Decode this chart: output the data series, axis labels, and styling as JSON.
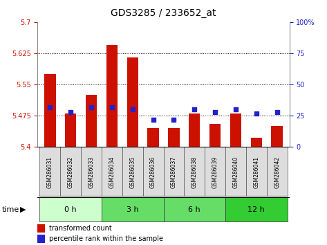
{
  "title": "GDS3285 / 233652_at",
  "samples": [
    "GSM286031",
    "GSM286032",
    "GSM286033",
    "GSM286034",
    "GSM286035",
    "GSM286036",
    "GSM286037",
    "GSM286038",
    "GSM286039",
    "GSM286040",
    "GSM286041",
    "GSM286042"
  ],
  "bar_values": [
    5.575,
    5.48,
    5.525,
    5.645,
    5.615,
    5.445,
    5.445,
    5.48,
    5.455,
    5.48,
    5.422,
    5.45
  ],
  "percentile_values": [
    32,
    28,
    32,
    32,
    30,
    22,
    22,
    30,
    28,
    30,
    27,
    28
  ],
  "ymin": 5.4,
  "ymax": 5.7,
  "yticks": [
    5.4,
    5.475,
    5.55,
    5.625,
    5.7
  ],
  "ytick_labels": [
    "5.4",
    "5.475",
    "5.55",
    "5.625",
    "5.7"
  ],
  "y2min": 0,
  "y2max": 100,
  "y2ticks": [
    0,
    25,
    50,
    75,
    100
  ],
  "y2tick_labels": [
    "0",
    "25",
    "50",
    "75",
    "100%"
  ],
  "bar_color": "#cc1100",
  "dot_color": "#2222cc",
  "bar_width": 0.55,
  "group_labels": [
    "0 h",
    "3 h",
    "6 h",
    "12 h"
  ],
  "group_starts": [
    0,
    3,
    6,
    9
  ],
  "group_ends": [
    3,
    6,
    9,
    12
  ],
  "group_colors": [
    "#ccffcc",
    "#66dd66",
    "#66dd66",
    "#33cc33"
  ],
  "time_label": "time",
  "legend_bar_label": "transformed count",
  "legend_dot_label": "percentile rank within the sample",
  "title_fontsize": 10,
  "tick_label_fontsize": 7,
  "grid_color": "#000000",
  "background_color": "#ffffff",
  "plot_bg_color": "#ffffff",
  "tick_color_left": "#cc1100",
  "tick_color_right": "#2222cc",
  "sample_box_color": "#dddddd",
  "legend_fontsize": 7,
  "group_fontsize": 8,
  "time_fontsize": 8
}
